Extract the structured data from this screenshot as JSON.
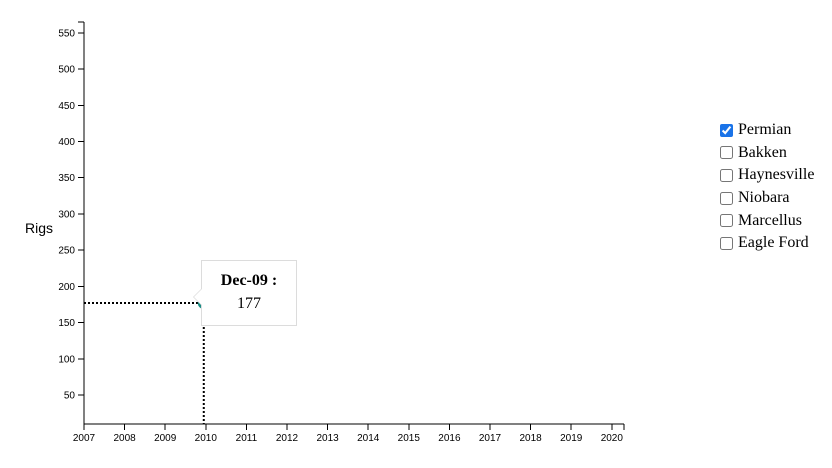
{
  "chart_data": {
    "type": "line",
    "ylabel": "Rigs",
    "xlabel": "",
    "title": "",
    "x_ticks": [
      "2007",
      "2008",
      "2009",
      "2010",
      "2011",
      "2012",
      "2013",
      "2014",
      "2015",
      "2016",
      "2017",
      "2018",
      "2019",
      "2020"
    ],
    "y_ticks": [
      "50",
      "100",
      "150",
      "200",
      "250",
      "300",
      "350",
      "400",
      "450",
      "500",
      "550"
    ],
    "xlim": [
      2007,
      2020.3
    ],
    "ylim": [
      10,
      565
    ],
    "series": [
      {
        "name": "Permian",
        "color": "#1a8c84",
        "visible": true,
        "points": [
          {
            "x": 2009.95,
            "y": 177
          }
        ]
      }
    ],
    "tooltip": {
      "date": "Dec-09 :",
      "value": "177",
      "x": 2009.95,
      "y": 177
    }
  },
  "legend": {
    "items": [
      {
        "label": "Permian",
        "checked": true
      },
      {
        "label": "Bakken",
        "checked": false
      },
      {
        "label": "Haynesville",
        "checked": false
      },
      {
        "label": "Niobara",
        "checked": false
      },
      {
        "label": "Marcellus",
        "checked": false
      },
      {
        "label": "Eagle Ford",
        "checked": false
      }
    ]
  }
}
